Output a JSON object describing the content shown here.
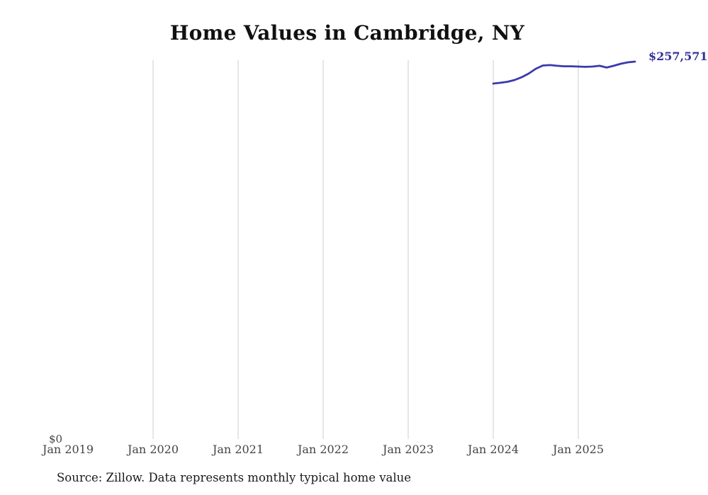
{
  "theme": {
    "background": "#ffffff",
    "line_color": "#3a3aae",
    "end_label_color": "#32329b",
    "grid_color": "#cccccc",
    "tick_color": "#444444",
    "title_color": "#111111",
    "source_color": "#1a1a1a"
  },
  "chart_data": {
    "type": "line",
    "title": "Home Values in Cambridge, NY",
    "xlabel": "",
    "ylabel": "",
    "x_tick_labels": [
      "Jan 2019",
      "Jan 2020",
      "Jan 2021",
      "Jan 2022",
      "Jan 2023",
      "Jan 2024",
      "Jan 2025"
    ],
    "y_tick_labels": [
      "$0"
    ],
    "ylim": [
      0,
      260000
    ],
    "grid": "vertical-yearly-only",
    "legend": "none",
    "source": "Source: Zillow. Data represents monthly typical home value",
    "series": [
      {
        "name": "Typical home value",
        "color": "#3a3aae",
        "end_label": "$257,571",
        "x": [
          "2024-01",
          "2024-02",
          "2024-03",
          "2024-04",
          "2024-05",
          "2024-06",
          "2024-07",
          "2024-08",
          "2024-09",
          "2024-10",
          "2024-11",
          "2024-12",
          "2025-01",
          "2025-02",
          "2025-03",
          "2025-04",
          "2025-05",
          "2025-06",
          "2025-07",
          "2025-08",
          "2025-09"
        ],
        "values": [
          242600,
          243100,
          243800,
          245000,
          246900,
          249400,
          252700,
          254900,
          255200,
          254700,
          254400,
          254400,
          254200,
          254000,
          254200,
          254700,
          253500,
          254700,
          256100,
          257100,
          257571
        ]
      }
    ]
  }
}
